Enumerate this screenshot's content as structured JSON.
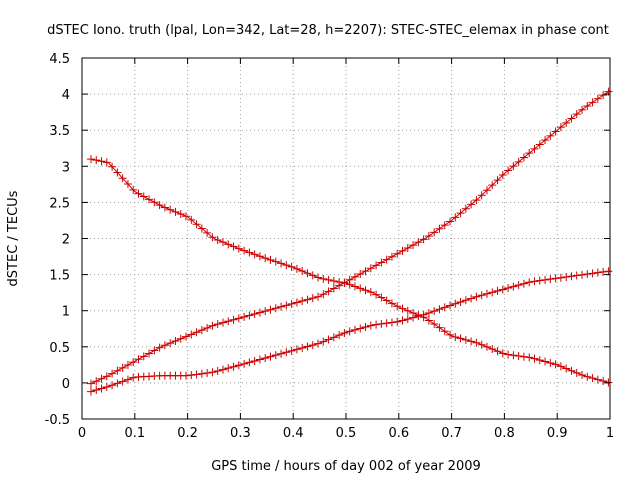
{
  "chart_data": {
    "type": "line",
    "title": "dSTEC Iono. truth (lpal, Lon=342, Lat=28, h=2207): STEC-STEC_elemax in phase cont",
    "xlabel": "GPS time / hours of day 002 of year 2009",
    "ylabel": "dSTEC  / TECUs",
    "xlim": [
      0,
      1
    ],
    "ylim": [
      -0.5,
      4.5
    ],
    "xticks": [
      0,
      0.1,
      0.2,
      0.3,
      0.4,
      0.5,
      0.6,
      0.7,
      0.8,
      0.9,
      1
    ],
    "xtick_labels": [
      "0",
      "0.1",
      "0.2",
      "0.3",
      "0.4",
      "0.5",
      "0.6",
      "0.7",
      "0.8",
      "0.9",
      "1"
    ],
    "yticks": [
      -0.5,
      0,
      0.5,
      1,
      1.5,
      2,
      2.5,
      3,
      3.5,
      4,
      4.5
    ],
    "ytick_labels": [
      "-0.5",
      "0",
      "0.5",
      "1",
      "1.5",
      "2",
      "2.5",
      "3",
      "3.5",
      "4",
      "4.5"
    ],
    "grid": true,
    "marker": "plus",
    "color": "#cc0000",
    "series": [
      {
        "x": [
          0.017,
          0.05,
          0.1,
          0.15,
          0.2,
          0.25,
          0.3,
          0.35,
          0.4,
          0.45,
          0.5,
          0.55,
          0.6,
          0.65,
          0.7,
          0.75,
          0.8,
          0.85,
          0.9,
          0.95,
          1.0
        ],
        "y": [
          3.1,
          3.05,
          2.65,
          2.45,
          2.3,
          2.0,
          1.85,
          1.72,
          1.6,
          1.45,
          1.38,
          1.25,
          1.05,
          0.9,
          0.65,
          0.55,
          0.4,
          0.35,
          0.25,
          0.1,
          0.0
        ]
      },
      {
        "x": [
          0.017,
          0.05,
          0.1,
          0.15,
          0.2,
          0.25,
          0.3,
          0.35,
          0.4,
          0.45,
          0.5,
          0.55,
          0.6,
          0.65,
          0.7,
          0.75,
          0.8,
          0.85,
          0.9,
          0.95,
          1.0
        ],
        "y": [
          -0.01,
          0.1,
          0.3,
          0.5,
          0.65,
          0.8,
          0.9,
          1.0,
          1.1,
          1.2,
          1.4,
          1.6,
          1.8,
          2.0,
          2.25,
          2.55,
          2.9,
          3.2,
          3.5,
          3.8,
          4.05
        ]
      },
      {
        "x": [
          0.017,
          0.05,
          0.1,
          0.15,
          0.2,
          0.25,
          0.3,
          0.35,
          0.4,
          0.45,
          0.5,
          0.55,
          0.6,
          0.65,
          0.7,
          0.75,
          0.8,
          0.85,
          0.9,
          0.95,
          1.0
        ],
        "y": [
          -0.12,
          -0.05,
          0.08,
          0.1,
          0.1,
          0.15,
          0.25,
          0.35,
          0.45,
          0.55,
          0.7,
          0.8,
          0.85,
          0.95,
          1.08,
          1.2,
          1.3,
          1.4,
          1.45,
          1.5,
          1.55
        ]
      }
    ]
  }
}
